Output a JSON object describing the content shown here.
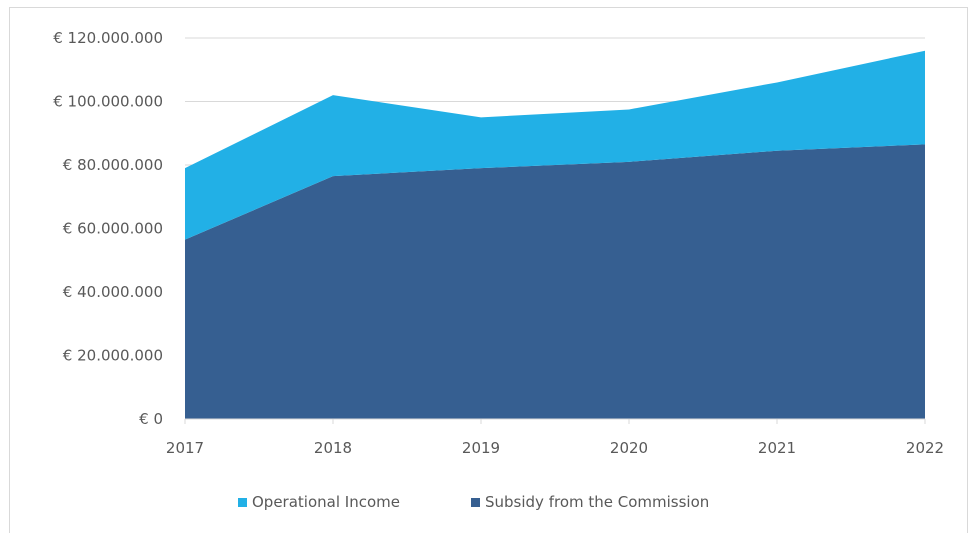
{
  "chart_data": {
    "type": "area",
    "stacked": true,
    "title": "",
    "xlabel": "",
    "ylabel": "",
    "x": [
      "2017",
      "2018",
      "2019",
      "2020",
      "2021",
      "2022"
    ],
    "ylim": [
      0,
      120000000
    ],
    "y_ticks": [
      0,
      20000000,
      40000000,
      60000000,
      80000000,
      100000000,
      120000000
    ],
    "y_tick_labels": [
      "€ 0",
      "€ 20.000.000",
      "€ 40.000.000",
      "€ 60.000.000",
      "€ 80.000.000",
      "€ 100.000.000",
      "€ 120.000.000"
    ],
    "grid": true,
    "legend_position": "bottom",
    "series": [
      {
        "name": "Subsidy from the Commission",
        "color": "#365F91",
        "values": [
          56500000,
          76500000,
          79000000,
          81000000,
          84500000,
          86500000
        ]
      },
      {
        "name": "Operational Income",
        "color": "#22B0E6",
        "values": [
          22500000,
          25500000,
          16000000,
          16500000,
          21500000,
          29500000
        ]
      }
    ],
    "legend": [
      {
        "label": "Operational Income",
        "color": "#22B0E6"
      },
      {
        "label": "Subsidy from the Commission",
        "color": "#365F91"
      }
    ]
  }
}
